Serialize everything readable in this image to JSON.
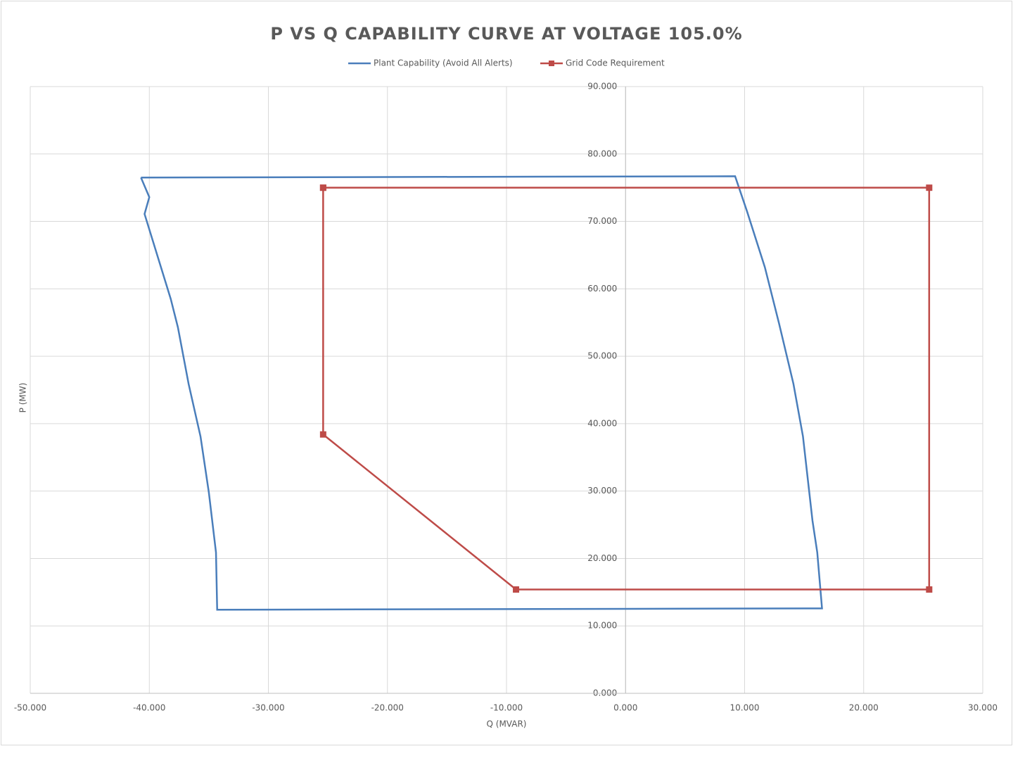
{
  "chart_data": {
    "type": "scatter-line",
    "title": "P VS Q CAPABILITY CURVE AT VOLTAGE 105.0%",
    "x_label": "Q (MVAR)",
    "y_label": "P (MW)",
    "xlim": [
      -50,
      30
    ],
    "ylim": [
      0,
      90
    ],
    "xticks": [
      {
        "value": -50,
        "label": "-50.000"
      },
      {
        "value": -40,
        "label": "-40.000"
      },
      {
        "value": -30,
        "label": "-30.000"
      },
      {
        "value": -20,
        "label": "-20.000"
      },
      {
        "value": -10,
        "label": "-10.000"
      },
      {
        "value": 0,
        "label": "0.000"
      },
      {
        "value": 10,
        "label": "10.000"
      },
      {
        "value": 20,
        "label": "20.000"
      },
      {
        "value": 30,
        "label": "30.000"
      }
    ],
    "yticks": [
      {
        "value": 0,
        "label": "0.000"
      },
      {
        "value": 10,
        "label": "10.000"
      },
      {
        "value": 20,
        "label": "20.000"
      },
      {
        "value": 30,
        "label": "30.000"
      },
      {
        "value": 40,
        "label": "40.000"
      },
      {
        "value": 50,
        "label": "50.000"
      },
      {
        "value": 60,
        "label": "60.000"
      },
      {
        "value": 70,
        "label": "70.000"
      },
      {
        "value": 80,
        "label": "80.000"
      },
      {
        "value": 90,
        "label": "90.000"
      }
    ],
    "grid": true,
    "legend": "top",
    "series": [
      {
        "name": "Plant Capability (Avoid All Alerts)",
        "color": "#4a7ebb",
        "markers": false,
        "x": [
          -40.7,
          9.2,
          10.2,
          11.7,
          12.9,
          14.1,
          14.9,
          15.7,
          16.1,
          16.5,
          -34.3,
          -34.4,
          -35.0,
          -35.7,
          -36.7,
          -37.6,
          -38.2,
          -40.4,
          -40.0,
          -40.7
        ],
        "values": [
          76.5,
          76.7,
          71.5,
          63.2,
          54.8,
          45.9,
          38.1,
          25.6,
          20.9,
          12.6,
          12.4,
          20.9,
          29.8,
          38.1,
          45.9,
          54.3,
          58.5,
          71.1,
          73.6,
          76.5
        ]
      },
      {
        "name": "Grid Code Requirement",
        "color": "#be4b48",
        "markers": true,
        "x": [
          -25.4,
          25.5,
          25.5,
          -9.2,
          -25.4,
          -25.4
        ],
        "values": [
          75.0,
          75.0,
          15.4,
          15.4,
          38.4,
          75.0
        ]
      }
    ]
  }
}
